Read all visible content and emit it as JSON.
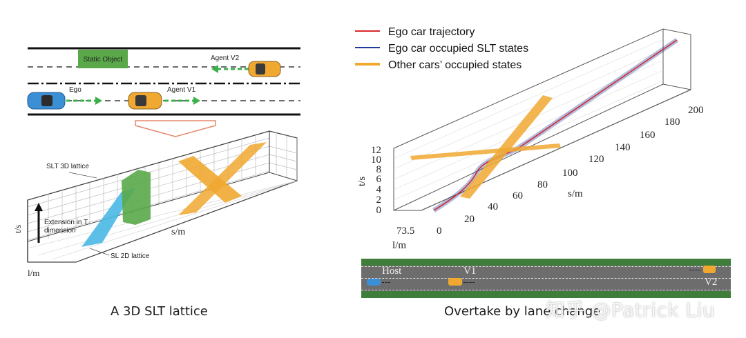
{
  "left_panel": {
    "caption": "A 3D SLT lattice",
    "road": {
      "static_object_label": "Static Object",
      "agent_v2_label": "Agent V2",
      "ego_label": "Ego",
      "agent_v1_label": "Agent V1"
    },
    "lattice": {
      "slt_3d_label": "SLT 3D lattice",
      "extension_label_line1": "Extension in T",
      "extension_label_line2": "dimension",
      "sl_2d_label": "SL 2D lattice",
      "t_axis_label": "t/s",
      "s_axis_label": "s/m",
      "l_axis_label": "l/m"
    }
  },
  "right_panel": {
    "caption": "Overtake by lane change",
    "legend": [
      {
        "label": "Ego car trajectory",
        "color": "#d62728"
      },
      {
        "label": "Ego car occupied SLT states",
        "color": "#1f3b9e"
      },
      {
        "label": "Other cars’ occupied states",
        "color": "#f0a830"
      }
    ],
    "t_axis": {
      "label": "t/s",
      "ticks": [
        "0",
        "2",
        "4",
        "6",
        "8",
        "10",
        "12"
      ]
    },
    "s_axis": {
      "label": "s/m",
      "ticks": [
        "20",
        "40",
        "60",
        "80",
        "100",
        "120",
        "140",
        "160",
        "180",
        "200"
      ]
    },
    "l_axis": {
      "label": "l/m",
      "ticks": [
        "73.5",
        "0"
      ]
    },
    "strip": {
      "host_label": "Host",
      "v1_label": "V1",
      "v2_label": "V2"
    }
  },
  "watermark": "知乎 @Patrick Liu",
  "colors": {
    "road_green": "#3e7d3a",
    "ego_blue": "#3b8fd4",
    "agent_orange": "#f0a830",
    "static_green": "#5aa84a",
    "cyan_block": "#4ab8e6"
  }
}
